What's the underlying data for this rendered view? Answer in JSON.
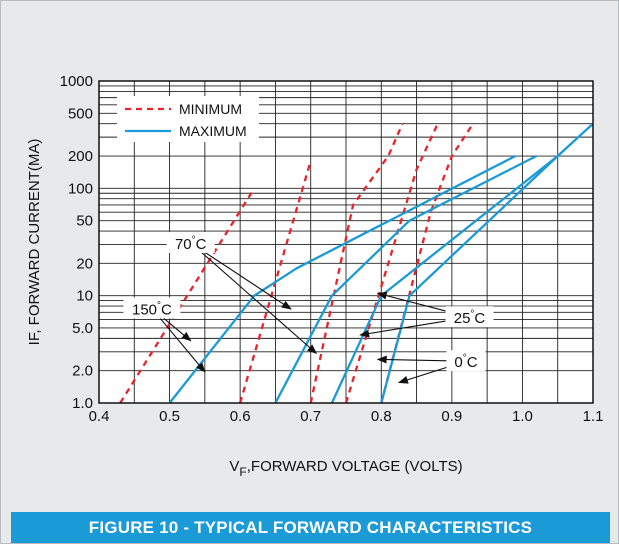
{
  "figure_caption": "FIGURE 10 - TYPICAL FORWARD CHARACTERISTICS",
  "colors": {
    "background": "#e8e9eb",
    "caption_bar": "#1a9ad7",
    "minimum_series": "#e8232a",
    "maximum_series": "#1a9ad7",
    "grid": "#222222"
  },
  "chart_data": {
    "type": "line",
    "title": "",
    "xlabel_main": "V",
    "xlabel_sub": "F",
    "xlabel_rest": ",FORWARD VOLTAGE (VOLTS)",
    "ylabel": "IF, FORWARD CURRENT(MA)",
    "x_scale": "linear",
    "y_scale": "log",
    "xlim": [
      0.4,
      1.1
    ],
    "ylim": [
      1.0,
      1000
    ],
    "grid": true,
    "legend_position": "top-left",
    "x_ticks": [
      {
        "value": 0.4,
        "label": "0.4"
      },
      {
        "value": 0.5,
        "label": "0.5"
      },
      {
        "value": 0.6,
        "label": "0.6"
      },
      {
        "value": 0.7,
        "label": "0.7"
      },
      {
        "value": 0.8,
        "label": "0.8"
      },
      {
        "value": 0.9,
        "label": "0.9"
      },
      {
        "value": 1.0,
        "label": "1.0"
      },
      {
        "value": 1.1,
        "label": "1.1"
      }
    ],
    "y_ticks": [
      {
        "value": 1.0,
        "label": "1.0"
      },
      {
        "value": 2.0,
        "label": "2.0"
      },
      {
        "value": 5.0,
        "label": "5.0"
      },
      {
        "value": 10,
        "label": "10"
      },
      {
        "value": 20,
        "label": "20"
      },
      {
        "value": 50,
        "label": "50"
      },
      {
        "value": 100,
        "label": "100"
      },
      {
        "value": 200,
        "label": "200"
      },
      {
        "value": 500,
        "label": "500"
      },
      {
        "value": 1000,
        "label": "1000"
      }
    ],
    "legend": [
      {
        "name": "MINIMUM",
        "style": "dashed",
        "color": "#e8232a"
      },
      {
        "name": "MAXIMUM",
        "style": "solid",
        "color": "#1a9ad7"
      }
    ],
    "series": [
      {
        "name": "MINIMUM",
        "temperature": "150°C",
        "style": "dashed",
        "color": "#e8232a",
        "points": [
          [
            0.43,
            1.0
          ],
          [
            0.62,
            100
          ]
        ]
      },
      {
        "name": "MINIMUM",
        "temperature": "70°C",
        "style": "dashed",
        "color": "#e8232a",
        "points": [
          [
            0.6,
            1.0
          ],
          [
            0.7,
            180
          ]
        ]
      },
      {
        "name": "MINIMUM",
        "temperature": "25°C",
        "style": "dashed",
        "color": "#e8232a",
        "points": [
          [
            0.7,
            1.0
          ],
          [
            0.76,
            70
          ],
          [
            0.81,
            200
          ],
          [
            0.83,
            400
          ]
        ]
      },
      {
        "name": "MINIMUM",
        "temperature": "0°C",
        "style": "dashed",
        "color": "#e8232a",
        "points": [
          [
            0.75,
            1.0
          ],
          [
            0.81,
            20
          ],
          [
            0.85,
            150
          ],
          [
            0.88,
            400
          ]
        ]
      },
      {
        "name": "MINIMUM",
        "temperature": "0°C",
        "style": "dashed",
        "color": "#e8232a",
        "points": [
          [
            0.8,
            1.0
          ],
          [
            0.87,
            60
          ],
          [
            0.9,
            200
          ],
          [
            0.93,
            400
          ]
        ]
      },
      {
        "name": "MAXIMUM",
        "temperature": "150°C",
        "style": "solid",
        "color": "#1a9ad7",
        "points": [
          [
            0.5,
            1.0
          ],
          [
            0.62,
            10
          ],
          [
            0.68,
            18
          ],
          [
            0.99,
            200
          ]
        ]
      },
      {
        "name": "MAXIMUM",
        "temperature": "70°C",
        "style": "solid",
        "color": "#1a9ad7",
        "points": [
          [
            0.65,
            1.0
          ],
          [
            0.73,
            10
          ],
          [
            0.84,
            50
          ],
          [
            1.02,
            200
          ]
        ]
      },
      {
        "name": "MAXIMUM",
        "temperature": "25°C",
        "style": "solid",
        "color": "#1a9ad7",
        "points": [
          [
            0.73,
            1.0
          ],
          [
            0.8,
            10
          ],
          [
            1.05,
            200
          ],
          [
            1.1,
            400
          ]
        ]
      },
      {
        "name": "MAXIMUM",
        "temperature": "0°C",
        "style": "solid",
        "color": "#1a9ad7",
        "points": [
          [
            0.8,
            1.0
          ],
          [
            0.84,
            10
          ],
          [
            1.05,
            200
          ]
        ]
      }
    ],
    "annotations": [
      {
        "text": "70°C",
        "label_anchor": [
          0.53,
          31
        ],
        "targets": [
          [
            0.672,
            7.5
          ],
          [
            0.708,
            2.9
          ]
        ]
      },
      {
        "text": "150°C",
        "label_anchor": [
          0.475,
          7.6
        ],
        "targets": [
          [
            0.53,
            3.8
          ],
          [
            0.55,
            1.95
          ]
        ]
      },
      {
        "text": "25°C",
        "label_anchor": [
          0.925,
          6.3
        ],
        "targets": [
          [
            0.795,
            10.5
          ],
          [
            0.77,
            4.3
          ]
        ]
      },
      {
        "text": "0°C",
        "label_anchor": [
          0.92,
          2.45
        ],
        "targets": [
          [
            0.795,
            2.55
          ],
          [
            0.825,
            1.55
          ]
        ]
      }
    ]
  }
}
